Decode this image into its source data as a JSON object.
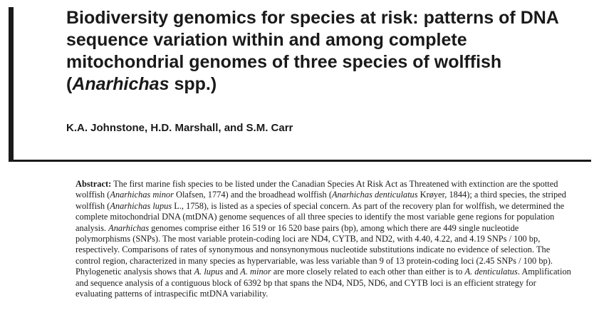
{
  "article": {
    "title_before_italic": "Biodiversity genomics for species at risk: patterns of DNA sequence variation within and among complete mitochondrial genomes of three species of wolffish (",
    "title_italic": "Anarhichas",
    "title_after_italic": " spp.)",
    "authors": "K.A. Johnstone, H.D. Marshall, and S.M. Carr"
  },
  "abstract": {
    "label": "Abstract:",
    "s1": " The first marine fish species to be listed under the Canadian Species At Risk Act as Threatened with extinction are the spotted wolffish (",
    "i1": "Anarhichas minor",
    "s2": " Olafsen, 1774) and the broadhead wolffish (",
    "i2": "Anarhichas denticulatus",
    "s3": " Krøyer, 1844); a third species, the striped wolffish (",
    "i3": "Anarhichas lupus",
    "s4": " L., 1758), is listed as a species of special concern. As part of the recovery plan for wolffish, we determined the complete mitochondrial DNA (mtDNA) genome sequences of all three species to identify the most variable gene regions for population analysis. ",
    "i4": "Anarhichas",
    "s5": " genomes comprise either 16 519 or 16 520 base pairs (bp), among which there are 449 single nucleotide polymorphisms (SNPs). The most variable protein-coding loci are ND4, CYTB, and ND2, with 4.40, 4.22, and 4.19 SNPs / 100 bp, respectively. Comparisons of rates of synonymous and nonsynonymous nucleotide substitutions indicate no evidence of selection. The control region, characterized in many species as hypervariable, was less variable than 9 of 13 protein-coding loci (2.45 SNPs / 100 bp). Phylogenetic analysis shows that ",
    "i5": "A. lupus",
    "s6": " and ",
    "i6": "A. minor",
    "s7": " are more closely related to each other than either is to ",
    "i7": "A. denticulatus",
    "s8": ". Amplification and sequence analysis of a contiguous block of 6392 bp that spans the ND4, ND5, ND6, and CYTB loci is an efficient strategy for evaluating patterns of intraspecific mtDNA variability."
  }
}
